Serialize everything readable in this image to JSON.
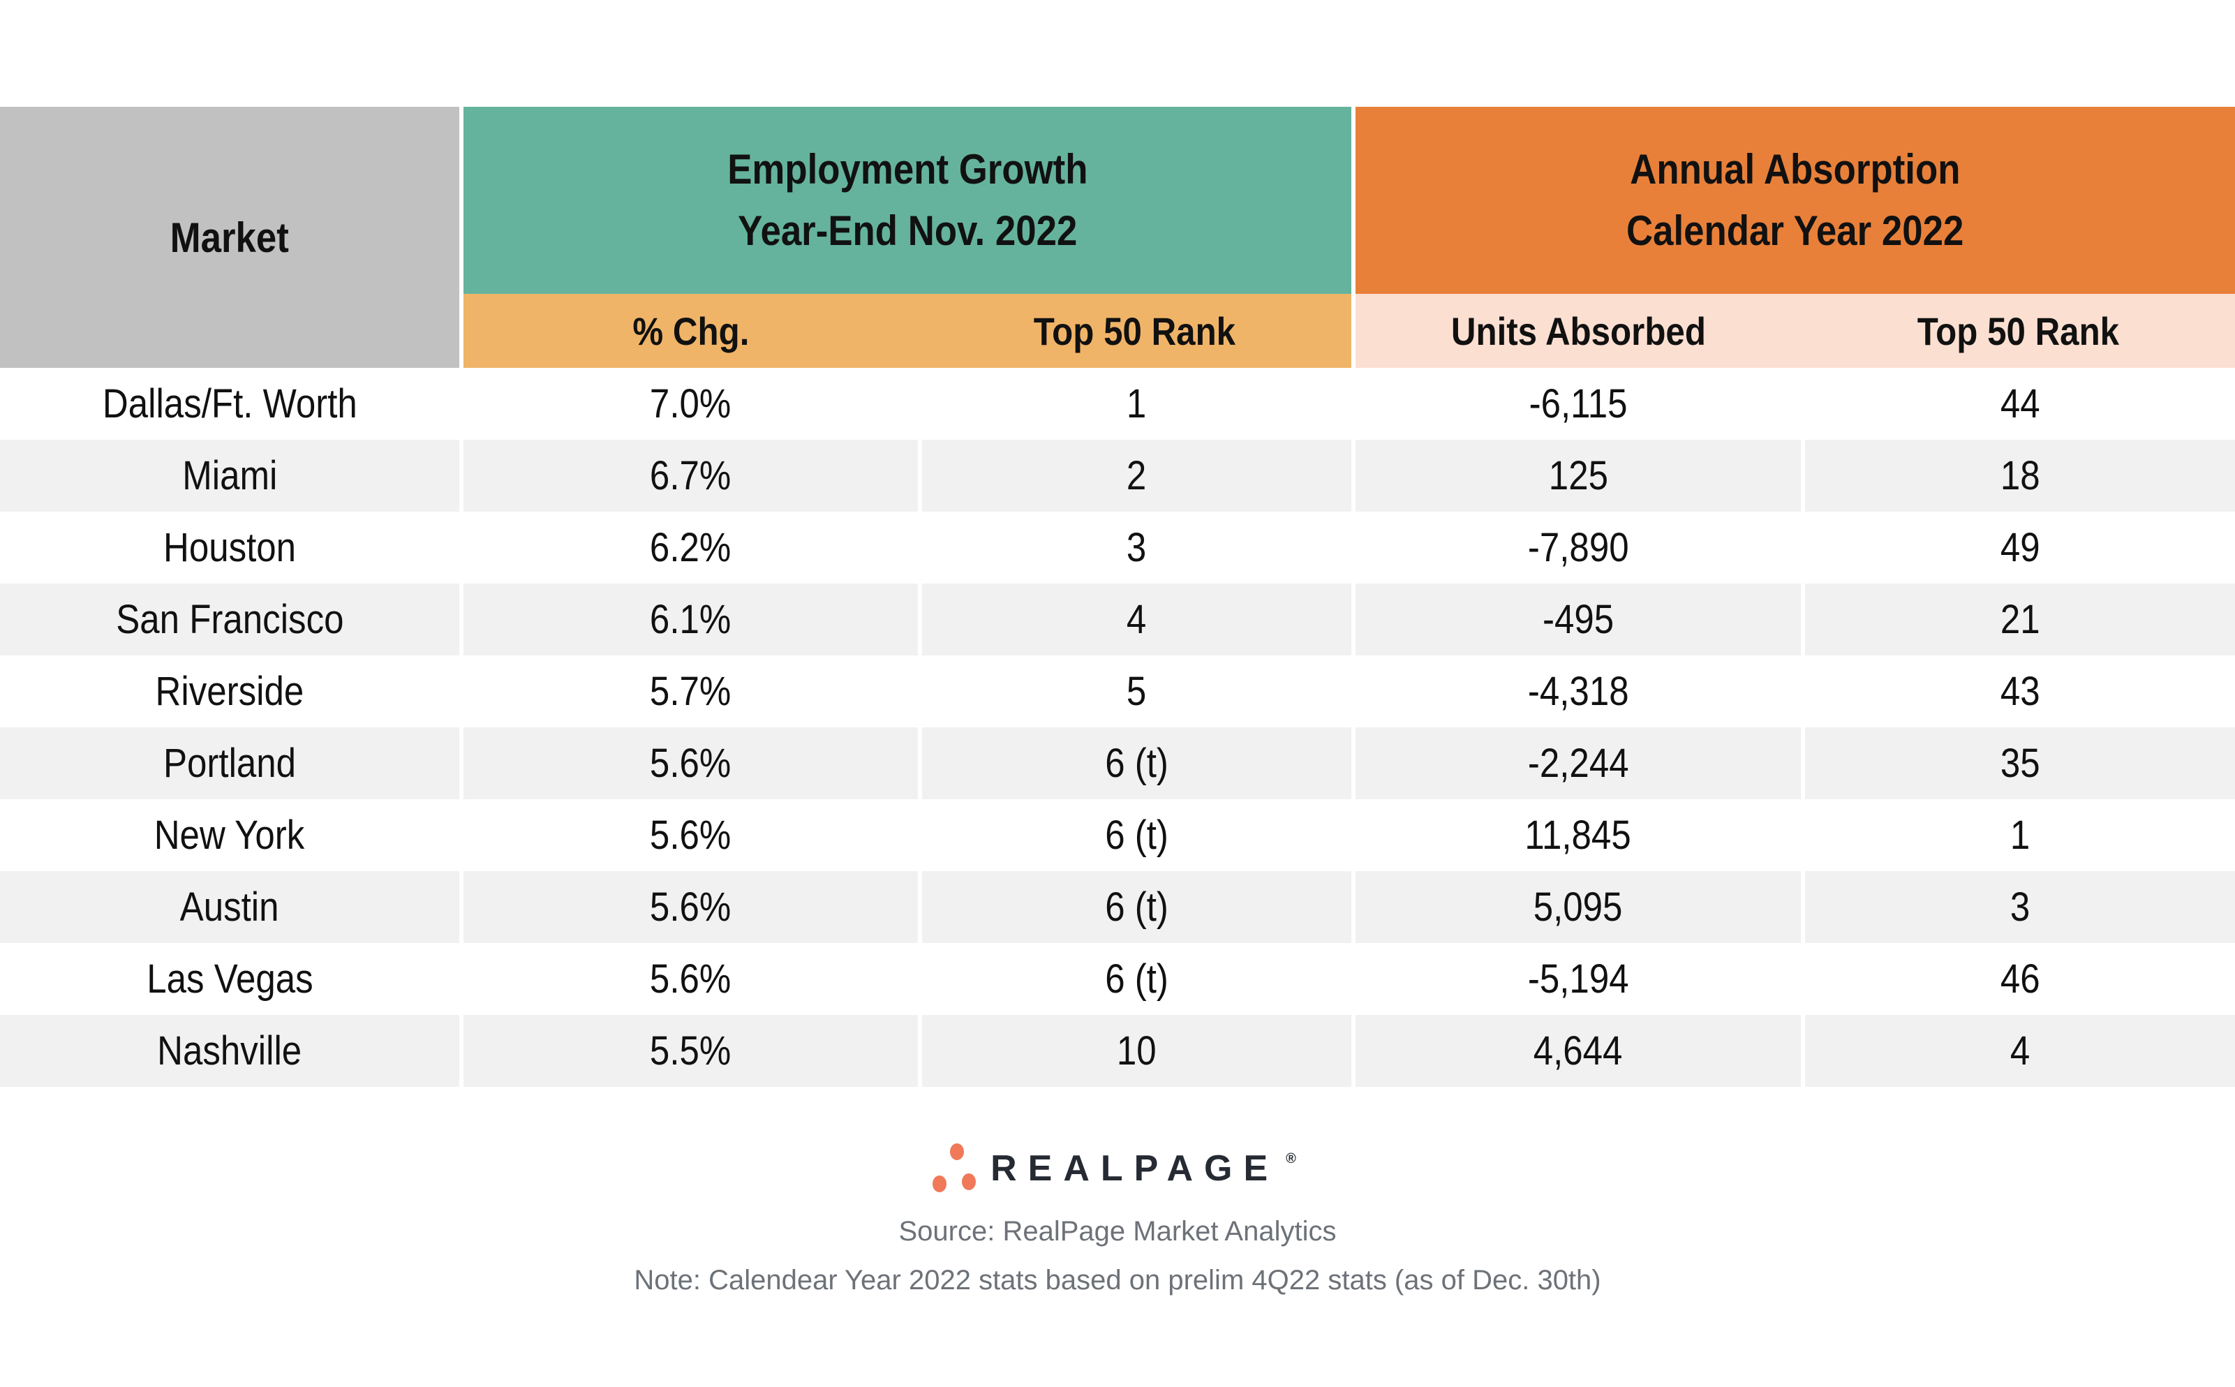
{
  "table": {
    "market_header": "Market",
    "groups": [
      {
        "title_line1": "Employment Growth",
        "title_line2": "Year-End Nov. 2022",
        "columns": [
          "% Chg.",
          "Top 50 Rank"
        ]
      },
      {
        "title_line1": "Annual Absorption",
        "title_line2": "Calendar Year 2022",
        "columns": [
          "Units Absorbed",
          "Top 50 Rank"
        ]
      }
    ],
    "rows": [
      {
        "market": "Dallas/Ft. Worth",
        "chg": "7.0%",
        "eg_rank": "1",
        "units": "-6,115",
        "aa_rank": "44"
      },
      {
        "market": "Miami",
        "chg": "6.7%",
        "eg_rank": "2",
        "units": "125",
        "aa_rank": "18"
      },
      {
        "market": "Houston",
        "chg": "6.2%",
        "eg_rank": "3",
        "units": "-7,890",
        "aa_rank": "49"
      },
      {
        "market": "San Francisco",
        "chg": "6.1%",
        "eg_rank": "4",
        "units": "-495",
        "aa_rank": "21"
      },
      {
        "market": "Riverside",
        "chg": "5.7%",
        "eg_rank": "5",
        "units": "-4,318",
        "aa_rank": "43"
      },
      {
        "market": "Portland",
        "chg": "5.6%",
        "eg_rank": "6 (t)",
        "units": "-2,244",
        "aa_rank": "35"
      },
      {
        "market": "New York",
        "chg": "5.6%",
        "eg_rank": "6 (t)",
        "units": "11,845",
        "aa_rank": "1"
      },
      {
        "market": "Austin",
        "chg": "5.6%",
        "eg_rank": "6 (t)",
        "units": "5,095",
        "aa_rank": "3"
      },
      {
        "market": "Las Vegas",
        "chg": "5.6%",
        "eg_rank": "6 (t)",
        "units": "-5,194",
        "aa_rank": "46"
      },
      {
        "market": "Nashville",
        "chg": "5.5%",
        "eg_rank": "10",
        "units": "4,644",
        "aa_rank": "4"
      }
    ]
  },
  "footer": {
    "logo_text": "REALPAGE",
    "logo_trademark": "®",
    "source": "Source: RealPage Market Analytics",
    "note": "Note: Calendear Year 2022 stats based on prelim 4Q22 stats (as of Dec. 30th)"
  },
  "colors": {
    "market_header_bg": "#c1c1c2",
    "teal_header_bg": "#65b39c",
    "orange_header_bg": "#e8803a",
    "teal_subheader_bg": "#f0b468",
    "orange_subheader_bg": "#fbdfd1",
    "row_alt_bg": "#f1f1f2",
    "text": "#111111",
    "footer_text": "#6d7278",
    "logo_dot": "#f0795a",
    "logo_text": "#252a33"
  },
  "chart_data": {
    "type": "table",
    "title": "",
    "column_groups": [
      {
        "label": "Market",
        "span": 1
      },
      {
        "label": "Employment Growth Year-End Nov. 2022",
        "span": 2
      },
      {
        "label": "Annual Absorption Calendar Year 2022",
        "span": 2
      }
    ],
    "columns": [
      "Market",
      "% Chg.",
      "Top 50 Rank",
      "Units Absorbed",
      "Top 50 Rank"
    ],
    "rows": [
      [
        "Dallas/Ft. Worth",
        "7.0%",
        "1",
        -6115,
        44
      ],
      [
        "Miami",
        "6.7%",
        "2",
        125,
        18
      ],
      [
        "Houston",
        "6.2%",
        "3",
        -7890,
        49
      ],
      [
        "San Francisco",
        "6.1%",
        "4",
        -495,
        21
      ],
      [
        "Riverside",
        "5.7%",
        "5",
        -4318,
        43
      ],
      [
        "Portland",
        "5.6%",
        "6 (t)",
        -2244,
        35
      ],
      [
        "New York",
        "5.6%",
        "6 (t)",
        11845,
        1
      ],
      [
        "Austin",
        "5.6%",
        "6 (t)",
        5095,
        3
      ],
      [
        "Las Vegas",
        "5.6%",
        "6 (t)",
        -5194,
        46
      ],
      [
        "Nashville",
        "5.5%",
        "10",
        4644,
        4
      ]
    ],
    "annotations": [
      "Source: RealPage Market Analytics",
      "Note: Calendear Year 2022 stats based on prelim 4Q22 stats (as of Dec. 30th)"
    ],
    "legend_position": "none",
    "grid": false
  }
}
